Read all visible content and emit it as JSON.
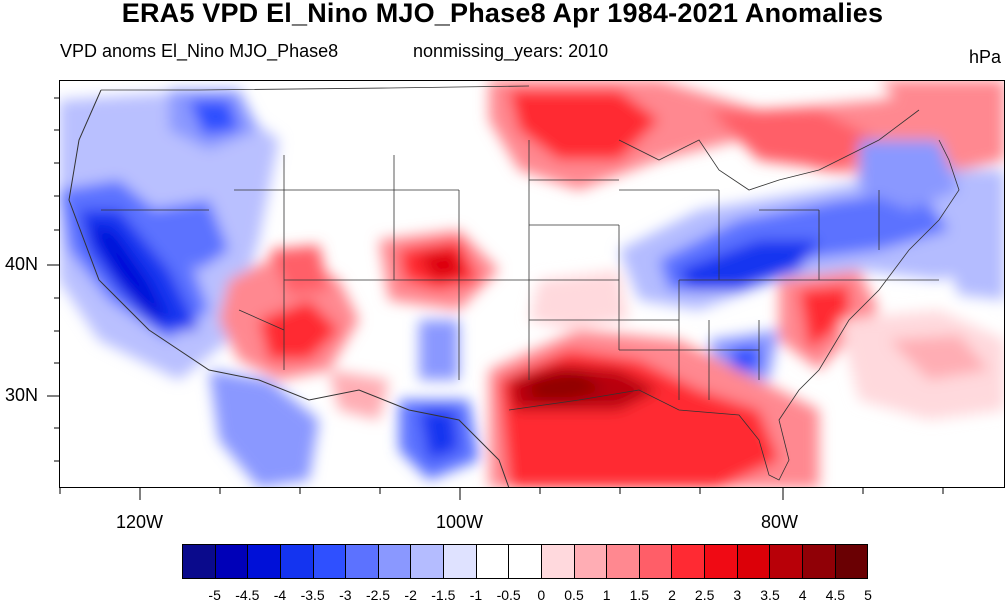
{
  "header": {
    "title": "ERA5 VPD El_Nino MJO_Phase8 Apr 1984-2021 Anomalies",
    "left_string": "VPD anoms El_Nino MJO_Phase8",
    "center_string": "nonmissing_years: 2010",
    "units": "hPa"
  },
  "map": {
    "lon_labels": [
      "120W",
      "100W",
      "80W"
    ],
    "lat_labels": [
      "40N",
      "30N"
    ]
  },
  "colorbar": {
    "colors": [
      "#0a0a8c",
      "#0000b8",
      "#0010d8",
      "#1434f0",
      "#2f50ff",
      "#5c72ff",
      "#8a98ff",
      "#b4bcff",
      "#dfe2ff",
      "#ffffff",
      "#ffffff",
      "#ffd9dd",
      "#ffadb4",
      "#ff8890",
      "#ff5e68",
      "#ff2a33",
      "#f00a14",
      "#dc0008",
      "#b80008",
      "#900006",
      "#6a0003"
    ],
    "labels": [
      "-5",
      "-4.5",
      "-4",
      "-3.5",
      "-3",
      "-2.5",
      "-2",
      "-1.5",
      "-1",
      "-0.5",
      "0",
      "0.5",
      "1",
      "1.5",
      "2",
      "2.5",
      "3",
      "3.5",
      "4",
      "4.5",
      "5"
    ]
  }
}
